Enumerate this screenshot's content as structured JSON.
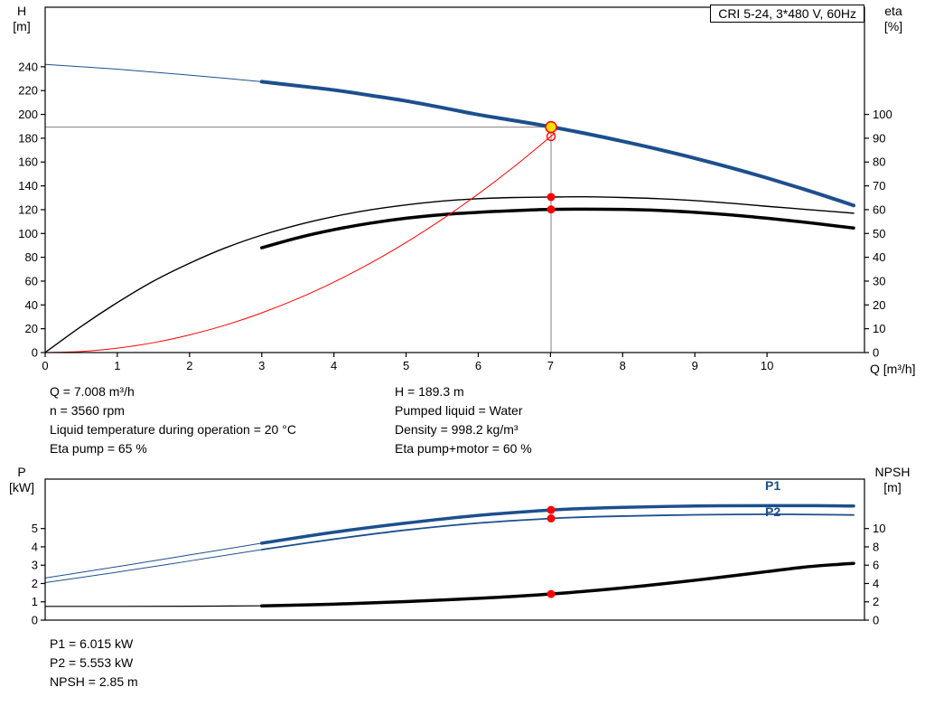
{
  "title_box": "CRI 5-24, 3*480 V, 60Hz",
  "colors": {
    "blue": "#1c4f8e",
    "red": "#ff0000",
    "black": "#000000",
    "gray": "#808080",
    "yellow": "#ffe000"
  },
  "axis_labels": {
    "top_left_1": "H",
    "top_left_2": "[m]",
    "top_right_1": "eta",
    "top_right_2": "[%]",
    "x": "Q [m³/h]",
    "bottom_left_1": "P",
    "bottom_left_2": "[kW]",
    "bottom_right_1": "NPSH",
    "bottom_right_2": "[m]"
  },
  "texts": {
    "top_block_left": [
      "Q = 7.008 m³/h",
      "n = 3560 rpm",
      "Liquid temperature during operation = 20 °C",
      "Eta pump = 65 %"
    ],
    "top_block_right": [
      "H = 189.3 m",
      "Pumped liquid = Water",
      "Density = 998.2 kg/m³",
      "Eta pump+motor = 60 %"
    ],
    "bottom_block": [
      "P1 = 6.015 kW",
      "P2 = 5.553 kW",
      "NPSH = 2.85 m"
    ],
    "p1_label": "P1",
    "p2_label": "P2"
  },
  "chart_data": [
    {
      "type": "line",
      "title": "CRI 5-24, 3*480 V, 60Hz",
      "xlabel": "Q [m³/h]",
      "ylabel_left": "H [m]",
      "ylabel_right": "eta [%]",
      "xlim": [
        0,
        11.35
      ],
      "xticks": [
        0,
        1,
        2,
        3,
        4,
        5,
        6,
        7,
        8,
        9,
        10
      ],
      "ylim_left": [
        0,
        290
      ],
      "yticks_left": [
        0,
        20,
        40,
        60,
        80,
        100,
        120,
        140,
        160,
        180,
        200,
        220,
        240
      ],
      "ylim_right": [
        0,
        145
      ],
      "yticks_right": [
        0,
        10,
        20,
        30,
        40,
        50,
        60,
        70,
        80,
        90,
        100
      ],
      "grid": false,
      "series": [
        {
          "name": "eta-pump-curve",
          "color": "black",
          "width": 1.4,
          "axis": "right",
          "points": [
            [
              0,
              0
            ],
            [
              0.5,
              11
            ],
            [
              1,
              21
            ],
            [
              1.5,
              30
            ],
            [
              2,
              37.5
            ],
            [
              2.5,
              44
            ],
            [
              3,
              49.3
            ],
            [
              3.5,
              53.6
            ],
            [
              4,
              57.1
            ],
            [
              4.5,
              59.9
            ],
            [
              5,
              62
            ],
            [
              5.5,
              63.6
            ],
            [
              6,
              64.6
            ],
            [
              6.5,
              65.1
            ],
            [
              7,
              65.3
            ],
            [
              7.5,
              65.4
            ],
            [
              8,
              65.1
            ],
            [
              8.5,
              64.6
            ],
            [
              9,
              63.8
            ],
            [
              9.5,
              62.7
            ],
            [
              10,
              61.4
            ],
            [
              10.5,
              60.2
            ],
            [
              11,
              59
            ],
            [
              11.2,
              58.5
            ]
          ]
        },
        {
          "name": "eta-pump-motor-curve",
          "color": "black",
          "width": 3.5,
          "axis": "right",
          "points": [
            [
              3,
              44
            ],
            [
              3.5,
              48.2
            ],
            [
              4,
              51.6
            ],
            [
              4.5,
              54.3
            ],
            [
              5,
              56.4
            ],
            [
              5.5,
              57.9
            ],
            [
              6,
              58.9
            ],
            [
              6.5,
              59.6
            ],
            [
              7,
              60.1
            ],
            [
              7.5,
              60.2
            ],
            [
              8,
              60.1
            ],
            [
              8.5,
              59.7
            ],
            [
              9,
              58.9
            ],
            [
              9.5,
              57.8
            ],
            [
              10,
              56.4
            ],
            [
              10.5,
              54.8
            ],
            [
              11,
              53
            ],
            [
              11.2,
              52.3
            ]
          ]
        },
        {
          "name": "system-curve",
          "color": "red",
          "width": 1,
          "axis": "left",
          "points": [
            [
              0,
              0
            ],
            [
              0.5,
              0.9
            ],
            [
              1,
              3.7
            ],
            [
              1.5,
              8.3
            ],
            [
              2,
              14.8
            ],
            [
              2.5,
              23.1
            ],
            [
              3,
              33.3
            ],
            [
              3.5,
              45.3
            ],
            [
              4,
              59.2
            ],
            [
              4.5,
              74.9
            ],
            [
              5,
              92.5
            ],
            [
              5.5,
              111.9
            ],
            [
              6,
              133.2
            ],
            [
              6.5,
              156.3
            ],
            [
              7,
              181.3
            ],
            [
              7.05,
              183.8
            ]
          ]
        },
        {
          "name": "pump-curve-extension",
          "color": "blue",
          "width": 1,
          "axis": "left",
          "points": [
            [
              0,
              242
            ],
            [
              1,
              238
            ],
            [
              2,
              233
            ],
            [
              3,
              227.5
            ]
          ]
        },
        {
          "name": "pump-curve",
          "color": "blue",
          "width": 4,
          "axis": "left",
          "points": [
            [
              3,
              227.5
            ],
            [
              3.5,
              224
            ],
            [
              4,
              220.5
            ],
            [
              4.5,
              216
            ],
            [
              5,
              211.3
            ],
            [
              5.5,
              205.7
            ],
            [
              6,
              199.8
            ],
            [
              6.5,
              194.8
            ],
            [
              7,
              189.6
            ],
            [
              7.5,
              183.8
            ],
            [
              8,
              177.4
            ],
            [
              8.5,
              170.6
            ],
            [
              9,
              163.2
            ],
            [
              9.5,
              155.2
            ],
            [
              10,
              146.6
            ],
            [
              10.5,
              137.4
            ],
            [
              11,
              127.6
            ],
            [
              11.2,
              123.5
            ]
          ]
        }
      ],
      "ref_lines": [
        {
          "dir": "v",
          "x": 7.008,
          "from": 0,
          "to": 189.3,
          "axis": "left"
        },
        {
          "dir": "h",
          "value": 189.3,
          "axis": "left",
          "from_x": 0,
          "to_x": 7.008
        }
      ],
      "markers": [
        {
          "name": "duty-point",
          "style": "op",
          "x": 7.008,
          "value": 189.3,
          "axis": "left"
        },
        {
          "name": "system-curve-point",
          "style": "ring",
          "x": 7.008,
          "value": 181.5,
          "axis": "left"
        },
        {
          "name": "eta-pump-point",
          "style": "dot",
          "x": 7.008,
          "value": 65.3,
          "axis": "right"
        },
        {
          "name": "eta-pump-motor-point",
          "style": "dot",
          "x": 7.008,
          "value": 60.1,
          "axis": "right"
        }
      ]
    },
    {
      "type": "line",
      "xlabel": "Q [m³/h]",
      "ylabel_left": "P [kW]",
      "ylabel_right": "NPSH [m]",
      "xlim": [
        0,
        11.35
      ],
      "xticks": [],
      "ylim_left": [
        0,
        7.7
      ],
      "yticks_left": [
        0,
        1,
        2,
        3,
        4,
        5
      ],
      "ylim_right": [
        0,
        15.4
      ],
      "yticks_right": [
        0,
        2,
        4,
        6,
        8,
        10
      ],
      "grid": false,
      "series": [
        {
          "name": "npsh-curve-extension",
          "color": "black",
          "width": 1.2,
          "axis": "right",
          "points": [
            [
              0,
              1.5
            ],
            [
              1,
              1.5
            ],
            [
              2,
              1.52
            ],
            [
              3,
              1.56
            ]
          ]
        },
        {
          "name": "npsh-curve",
          "color": "black",
          "width": 3.5,
          "axis": "right",
          "points": [
            [
              3,
              1.56
            ],
            [
              4,
              1.74
            ],
            [
              5,
              2.02
            ],
            [
              6,
              2.38
            ],
            [
              7,
              2.85
            ],
            [
              8,
              3.52
            ],
            [
              9,
              4.35
            ],
            [
              10,
              5.3
            ],
            [
              10.5,
              5.78
            ],
            [
              11,
              6.1
            ],
            [
              11.2,
              6.2
            ]
          ]
        },
        {
          "name": "p1-curve-extension",
          "color": "blue",
          "width": 1,
          "axis": "left",
          "points": [
            [
              0,
              2.3
            ],
            [
              1,
              2.92
            ],
            [
              2,
              3.56
            ],
            [
              3,
              4.2
            ]
          ]
        },
        {
          "name": "p2-curve-extension",
          "color": "blue",
          "width": 1,
          "axis": "left",
          "points": [
            [
              0,
              2.05
            ],
            [
              1,
              2.62
            ],
            [
              2,
              3.23
            ],
            [
              3,
              3.85
            ]
          ]
        },
        {
          "name": "p2-curve",
          "color": "blue",
          "width": 1.8,
          "axis": "left",
          "points": [
            [
              3,
              3.85
            ],
            [
              4,
              4.42
            ],
            [
              5,
              4.92
            ],
            [
              6,
              5.3
            ],
            [
              7,
              5.55
            ],
            [
              7.5,
              5.63
            ],
            [
              8,
              5.68
            ],
            [
              9,
              5.75
            ],
            [
              10,
              5.78
            ],
            [
              10.5,
              5.77
            ],
            [
              11,
              5.75
            ],
            [
              11.2,
              5.74
            ]
          ]
        },
        {
          "name": "p1-curve",
          "color": "blue",
          "width": 3.5,
          "axis": "left",
          "points": [
            [
              3,
              4.2
            ],
            [
              4,
              4.8
            ],
            [
              5,
              5.3
            ],
            [
              6,
              5.72
            ],
            [
              7,
              6.01
            ],
            [
              7.5,
              6.1
            ],
            [
              8,
              6.16
            ],
            [
              9,
              6.23
            ],
            [
              10,
              6.25
            ],
            [
              10.5,
              6.25
            ],
            [
              11,
              6.24
            ],
            [
              11.2,
              6.23
            ]
          ]
        }
      ],
      "ref_lines": [],
      "markers": [
        {
          "name": "p1-point",
          "style": "dot",
          "x": 7.008,
          "value": 6.015,
          "axis": "left"
        },
        {
          "name": "p2-point",
          "style": "dot",
          "x": 7.008,
          "value": 5.553,
          "axis": "left"
        },
        {
          "name": "npsh-point",
          "style": "dot",
          "x": 7.008,
          "value": 2.85,
          "axis": "right"
        }
      ]
    }
  ]
}
